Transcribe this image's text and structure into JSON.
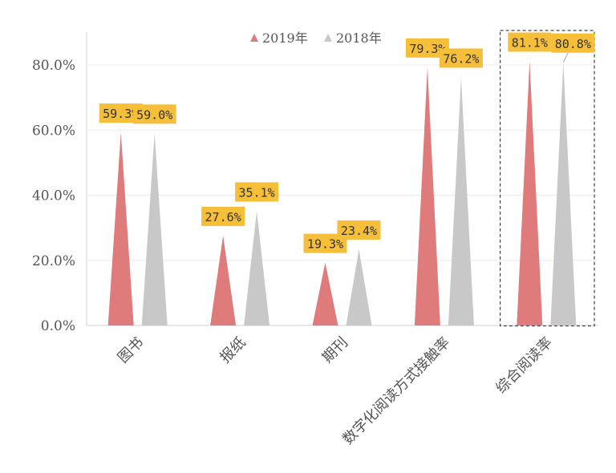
{
  "chart_data": {
    "type": "bar",
    "categories": [
      "图书",
      "报纸",
      "期刊",
      "数字化阅读方式接触率",
      "综合阅读率"
    ],
    "series": [
      {
        "name": "2019年",
        "values": [
          59.3,
          27.6,
          19.3,
          79.3,
          81.1
        ],
        "labels": [
          "59.3%",
          "27.6%",
          "19.3%",
          "79.3%",
          "81.1%"
        ]
      },
      {
        "name": "2018年",
        "values": [
          59.0,
          35.1,
          23.4,
          76.2,
          80.8
        ],
        "labels": [
          "59.0%",
          "35.1%",
          "23.4%",
          "76.2%",
          "80.8%"
        ]
      }
    ],
    "y_ticks": [
      "0.0%",
      "20.0%",
      "40.0%",
      "60.0%",
      "80.0%"
    ],
    "ylim": [
      0,
      90
    ],
    "grid": true,
    "legend_position": "top",
    "highlighted_category": "综合阅读率",
    "colors": {
      "series_2019": "#e07b7b",
      "series_2018": "#c8c8c8",
      "label_bg": "#f5bf3a",
      "grid": "#ececec",
      "axis": "#d0d0d0",
      "text": "#555555"
    },
    "title": "",
    "xlabel": "",
    "ylabel": ""
  }
}
